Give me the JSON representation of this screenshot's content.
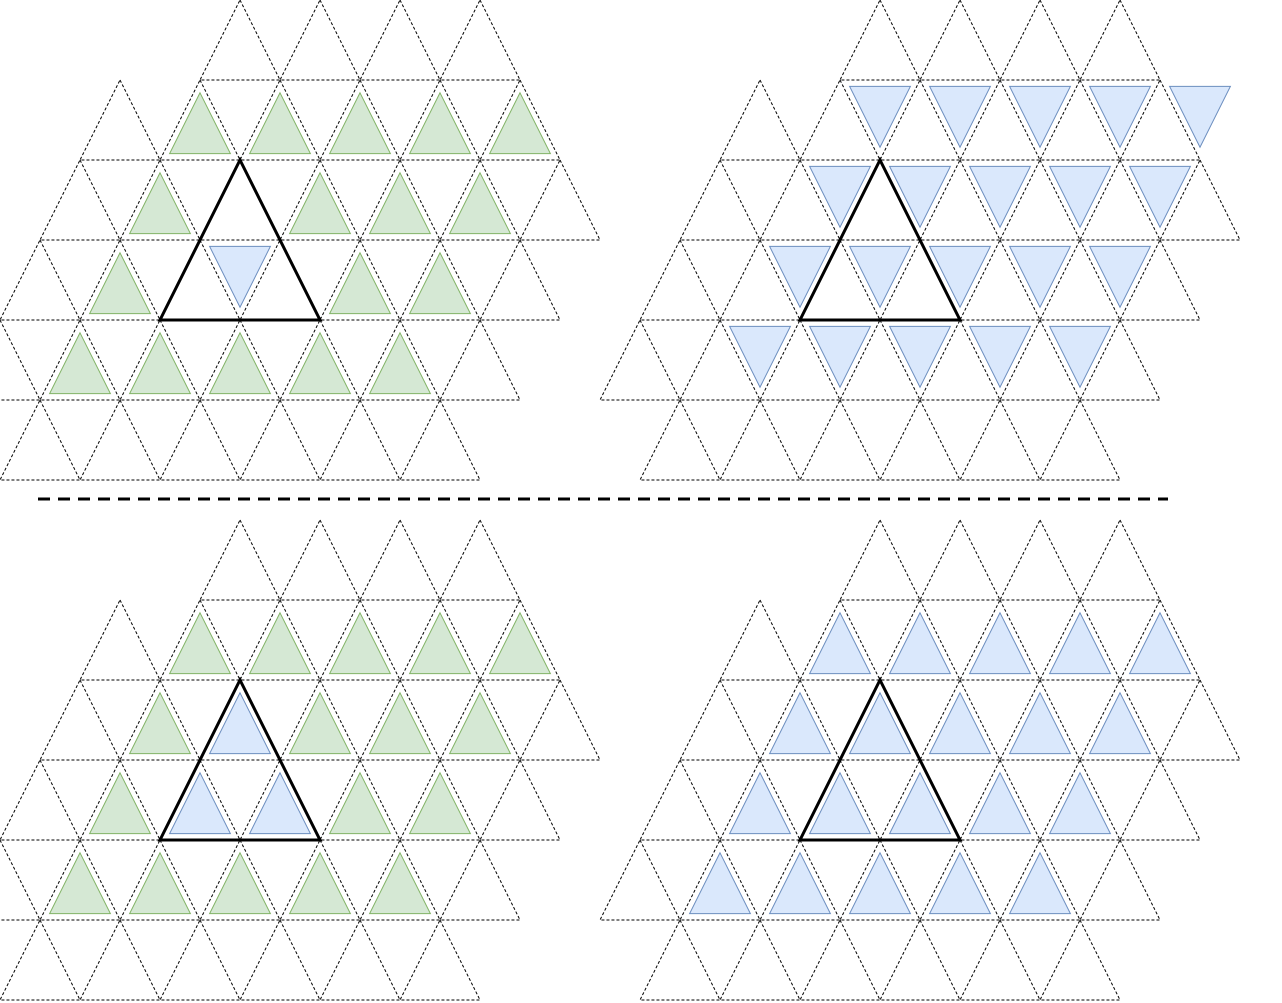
{
  "colors": {
    "background": "#ffffff",
    "grid_line": "#000000",
    "green_fill": "#d5e8d4",
    "green_stroke": "#82b366",
    "blue_fill": "#dae8fc",
    "blue_stroke": "#6c8ebf",
    "outline": "#000000",
    "separator": "#000000"
  },
  "panels": [
    {
      "name": "top-left",
      "fill_scheme": "green",
      "filled_orientation": "up",
      "extra_highlight": {
        "scheme": "blue",
        "orientation": "down"
      }
    },
    {
      "name": "top-right",
      "fill_scheme": "blue",
      "filled_orientation": "down",
      "extra_highlight": null
    },
    {
      "name": "bottom-left",
      "fill_scheme": "green",
      "filled_orientation": "up",
      "extra_highlight": {
        "scheme": "blue",
        "orientation": "up"
      }
    },
    {
      "name": "bottom-right",
      "fill_scheme": "blue",
      "filled_orientation": "up",
      "extra_highlight": null
    }
  ],
  "separator": {
    "style": "dashed"
  }
}
